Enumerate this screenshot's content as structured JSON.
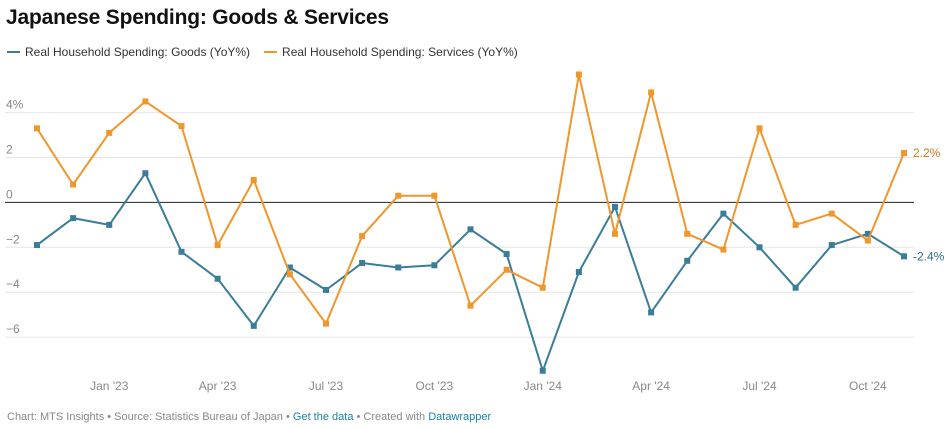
{
  "header": {
    "title": "Japanese Spending: Goods & Services"
  },
  "footer": {
    "prefix": "Chart: MTS Insights • Source: Statistics Bureau of Japan • ",
    "get_data": "Get the data",
    "middle": " • Created with ",
    "tool": "Datawrapper"
  },
  "colors": {
    "goods": "#3a7d99",
    "services": "#f0962b",
    "zero_line": "#222222",
    "grid": "#e6e6e6"
  },
  "chart_data": {
    "type": "line",
    "title": "Japanese Spending: Goods & Services",
    "xlabel": "",
    "ylabel": "",
    "ylim": [
      -7.6,
      5.9
    ],
    "y_ticks": [
      4,
      2,
      0,
      -2,
      -4,
      -6
    ],
    "y_tick_labels": [
      "4%",
      "2",
      "0",
      "−2",
      "−4",
      "−6"
    ],
    "x": [
      "Nov 2022",
      "Dec 2022",
      "Jan 2023",
      "Feb 2023",
      "Mar 2023",
      "Apr 2023",
      "May 2023",
      "Jun 2023",
      "Jul 2023",
      "Aug 2023",
      "Sep 2023",
      "Oct 2023",
      "Nov 2023",
      "Dec 2023",
      "Jan 2024",
      "Feb 2024",
      "Mar 2024",
      "Apr 2024",
      "May 2024",
      "Jun 2024",
      "Jul 2024",
      "Aug 2024",
      "Sep 2024",
      "Oct 2024",
      "Nov 2024"
    ],
    "x_tick_labels": [
      {
        "at": "Jan 2023",
        "label": "Jan '23"
      },
      {
        "at": "Apr 2023",
        "label": "Apr '23"
      },
      {
        "at": "Jul 2023",
        "label": "Jul '23"
      },
      {
        "at": "Oct 2023",
        "label": "Oct '23"
      },
      {
        "at": "Jan 2024",
        "label": "Jan '24"
      },
      {
        "at": "Apr 2024",
        "label": "Apr '24"
      },
      {
        "at": "Jul 2024",
        "label": "Jul '24"
      },
      {
        "at": "Oct 2024",
        "label": "Oct '24"
      }
    ],
    "series": [
      {
        "key": "goods",
        "name": "Real Household Spending: Goods (YoY%)",
        "end_label": "-2.4%",
        "values": [
          -1.9,
          -0.7,
          -1.0,
          1.3,
          -2.2,
          -3.4,
          -5.5,
          -2.9,
          -3.9,
          -2.7,
          -2.9,
          -2.8,
          -1.2,
          -2.3,
          -7.5,
          -3.1,
          -0.2,
          -4.9,
          -2.6,
          -0.5,
          -2.0,
          -3.8,
          -1.9,
          -1.4,
          -2.4
        ]
      },
      {
        "key": "services",
        "name": "Real Household Spending: Services (YoY%)",
        "end_label": "2.2%",
        "values": [
          3.3,
          0.8,
          3.1,
          4.5,
          3.4,
          -1.9,
          1.0,
          -3.2,
          -5.4,
          -1.5,
          0.3,
          0.3,
          -4.6,
          -3.0,
          -3.8,
          5.7,
          -1.4,
          4.9,
          -1.4,
          -2.1,
          3.3,
          -1.0,
          -0.5,
          -1.7,
          2.2
        ]
      }
    ],
    "grid": true,
    "legend_position": "top-left"
  }
}
